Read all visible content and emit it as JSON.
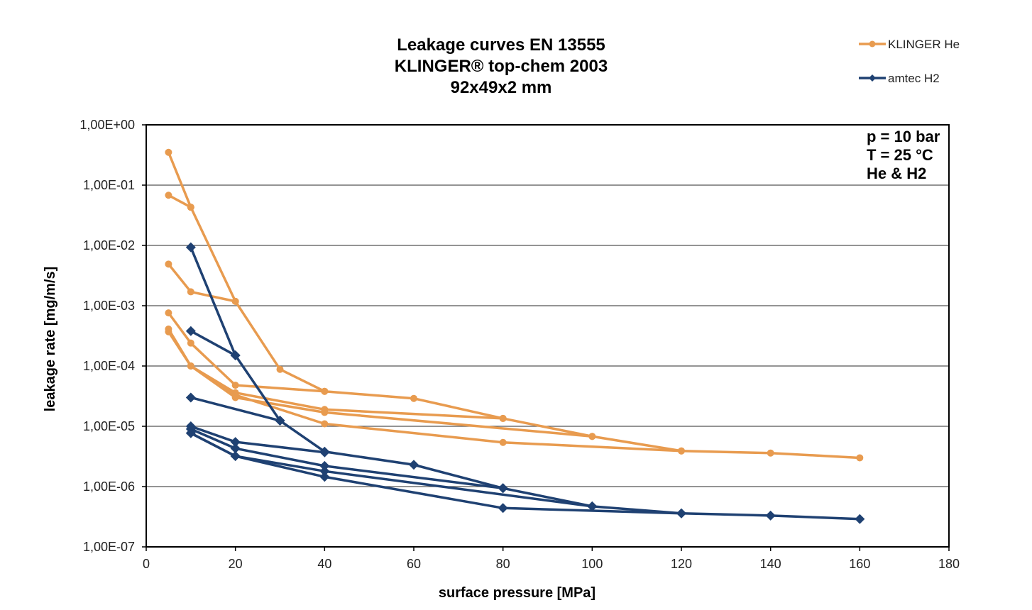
{
  "chart_data": {
    "type": "line",
    "title": [
      "Leakage curves EN 13555",
      "KLINGER® top-chem 2003",
      "92x49x2 mm"
    ],
    "xlabel": "surface pressure [MPa]",
    "ylabel": "leakage rate [mg/m/s]",
    "xlim": [
      0,
      180
    ],
    "ylim": [
      1e-07,
      1
    ],
    "yscale": "log",
    "x_ticks": [
      "0",
      "20",
      "40",
      "60",
      "80",
      "100",
      "120",
      "140",
      "160",
      "180"
    ],
    "y_ticks": [
      "1,00E+00",
      "1,00E-01",
      "1,00E-02",
      "1,00E-03",
      "1,00E-04",
      "1,00E-05",
      "1,00E-06",
      "1,00E-07"
    ],
    "grid": "horizontal",
    "legend_position": "top-right",
    "annotation": [
      "p = 10 bar",
      "T = 25 °C",
      "He & H2"
    ],
    "colors": {
      "KLINGER He": "#E89B4F",
      "amtec H2": "#1F4172"
    },
    "series": [
      {
        "name": "KLINGER He",
        "group": "KLINGER He",
        "points": [
          [
            5,
            0.35
          ],
          [
            10,
            0.043
          ],
          [
            20,
            0.00118
          ],
          [
            30,
            8.8e-05
          ],
          [
            40,
            3.8e-05
          ],
          [
            60,
            2.9e-05
          ],
          [
            80,
            1.35e-05
          ],
          [
            100,
            6.8e-06
          ],
          [
            120,
            3.9e-06
          ],
          [
            140,
            3.6e-06
          ],
          [
            160,
            3e-06
          ]
        ]
      },
      {
        "name": "KLINGER He",
        "group": "KLINGER He",
        "points": [
          [
            5,
            0.068
          ],
          [
            10,
            0.043
          ]
        ]
      },
      {
        "name": "KLINGER He",
        "group": "KLINGER He",
        "points": [
          [
            5,
            0.0049
          ],
          [
            10,
            0.0017
          ],
          [
            20,
            0.00118
          ]
        ]
      },
      {
        "name": "KLINGER He",
        "group": "KLINGER He",
        "points": [
          [
            5,
            0.00076
          ],
          [
            10,
            0.00024
          ],
          [
            20,
            4.8e-05
          ],
          [
            40,
            3.8e-05
          ]
        ]
      },
      {
        "name": "KLINGER He",
        "group": "KLINGER He",
        "points": [
          [
            5,
            0.00041
          ],
          [
            10,
            0.0001
          ],
          [
            20,
            3.6e-05
          ],
          [
            40,
            1.9e-05
          ],
          [
            80,
            1.35e-05
          ]
        ]
      },
      {
        "name": "KLINGER He",
        "group": "KLINGER He",
        "points": [
          [
            5,
            0.00037
          ],
          [
            10,
            0.0001
          ],
          [
            20,
            3e-05
          ],
          [
            40,
            1.7e-05
          ],
          [
            100,
            6.8e-06
          ]
        ]
      },
      {
        "name": "KLINGER He",
        "group": "KLINGER He",
        "points": [
          [
            10,
            0.0001
          ],
          [
            20,
            3.3e-05
          ],
          [
            40,
            1.1e-05
          ],
          [
            80,
            5.4e-06
          ],
          [
            120,
            3.9e-06
          ]
        ]
      },
      {
        "name": "amtec H2",
        "group": "amtec H2",
        "points": [
          [
            10,
            0.0093
          ],
          [
            20,
            0.00015
          ],
          [
            30,
            1.24e-05
          ],
          [
            40,
            3.8e-06
          ],
          [
            60,
            2.3e-06
          ],
          [
            80,
            9.4e-07
          ],
          [
            100,
            4.7e-07
          ],
          [
            120,
            3.6e-07
          ],
          [
            140,
            3.3e-07
          ],
          [
            160,
            2.9e-07
          ]
        ]
      },
      {
        "name": "amtec H2",
        "group": "amtec H2",
        "points": [
          [
            10,
            0.00038
          ],
          [
            20,
            0.00015
          ]
        ]
      },
      {
        "name": "amtec H2",
        "group": "amtec H2",
        "points": [
          [
            10,
            3e-05
          ],
          [
            30,
            1.24e-05
          ]
        ]
      },
      {
        "name": "amtec H2",
        "group": "amtec H2",
        "points": [
          [
            10,
            1e-05
          ],
          [
            20,
            5.5e-06
          ],
          [
            40,
            3.7e-06
          ]
        ]
      },
      {
        "name": "amtec H2",
        "group": "amtec H2",
        "points": [
          [
            10,
            9e-06
          ],
          [
            20,
            4.3e-06
          ],
          [
            40,
            2.2e-06
          ],
          [
            80,
            9.4e-07
          ]
        ]
      },
      {
        "name": "amtec H2",
        "group": "amtec H2",
        "points": [
          [
            10,
            7.7e-06
          ],
          [
            20,
            3.2e-06
          ],
          [
            40,
            1.8e-06
          ],
          [
            100,
            4.7e-07
          ]
        ]
      },
      {
        "name": "amtec H2",
        "group": "amtec H2",
        "points": [
          [
            10,
            7.7e-06
          ],
          [
            20,
            3.2e-06
          ],
          [
            40,
            1.45e-06
          ],
          [
            80,
            4.4e-07
          ],
          [
            120,
            3.6e-07
          ]
        ]
      }
    ],
    "legend": [
      {
        "label": "KLINGER He",
        "marker": "circle"
      },
      {
        "label": "amtec H2",
        "marker": "diamond"
      }
    ]
  }
}
